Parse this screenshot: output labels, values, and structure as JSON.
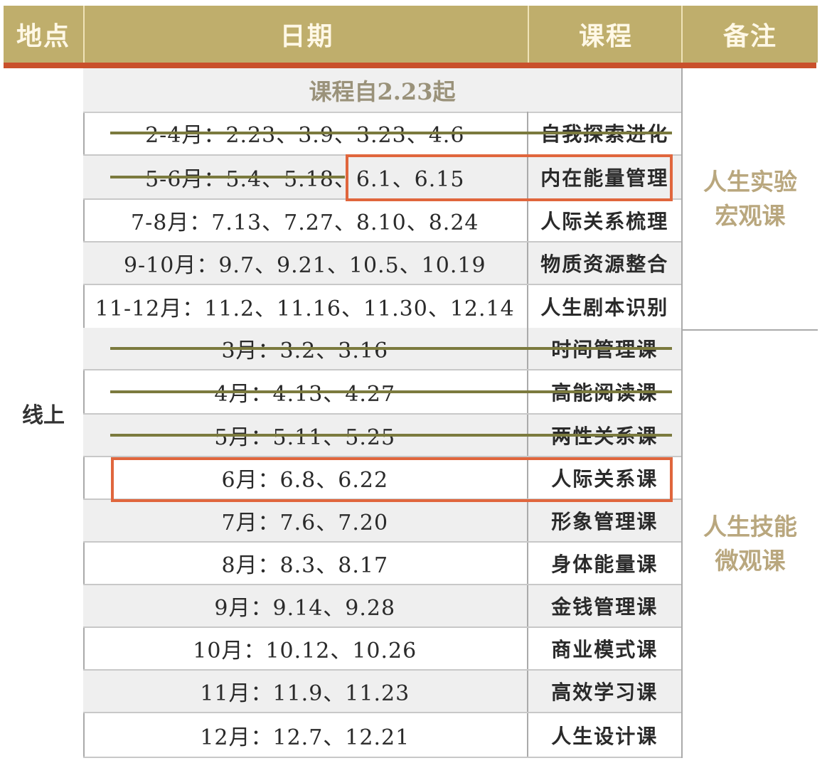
{
  "header": {
    "location": "地点",
    "date": "日期",
    "course": "课程",
    "note": "备注"
  },
  "location": "线上",
  "subtitle": "课程自2.23起",
  "groups": [
    {
      "note_line1": "人生实验",
      "note_line2": "宏观课",
      "rows": [
        {
          "date": "2-4月：2.23、3.9、3.23、4.6",
          "course": "自我探索进化",
          "struck": true
        },
        {
          "date_struck": "5-6月：5.4、5.18、",
          "date_rest": "6.1、6.15",
          "course": "内在能量管理",
          "struck": "partial",
          "highlighted": true
        },
        {
          "date": "7-8月：7.13、7.27、8.10、8.24",
          "course": "人际关系梳理",
          "struck": false
        },
        {
          "date": "9-10月：9.7、9.21、10.5、10.19",
          "course": "物质资源整合",
          "struck": false
        },
        {
          "date": "11-12月：11.2、11.16、11.30、12.14",
          "course": "人生剧本识别",
          "struck": false
        }
      ]
    },
    {
      "note_line1": "人生技能",
      "note_line2": "微观课",
      "rows": [
        {
          "date": "3月：3.2、3.16",
          "course": "时间管理课",
          "struck": true
        },
        {
          "date": "4月：4.13、4.27",
          "course": "高能阅读课",
          "struck": true
        },
        {
          "date": "5月：5.11、5.25",
          "course": "两性关系课",
          "struck": true
        },
        {
          "date": "6月：6.8、6.22",
          "course": "人际关系课",
          "struck": false,
          "highlighted": true
        },
        {
          "date": "7月：7.6、7.20",
          "course": "形象管理课",
          "struck": false
        },
        {
          "date": "8月：8.3、8.17",
          "course": "身体能量课",
          "struck": false
        },
        {
          "date": "9月：9.14、9.28",
          "course": "金钱管理课",
          "struck": false
        },
        {
          "date": "10月：10.12、10.26",
          "course": "商业模式课",
          "struck": false
        },
        {
          "date": "11月：11.9、11.23",
          "course": "高效学习课",
          "struck": false
        },
        {
          "date": "12月：12.7、12.21",
          "course": "人生设计课",
          "struck": false
        }
      ]
    }
  ],
  "colors": {
    "header_bg": "#bfae6c",
    "rule": "#c9502b",
    "strike": "#7b7a3e",
    "highlight_box": "#e0663d",
    "note_text": "#b9a77e"
  }
}
